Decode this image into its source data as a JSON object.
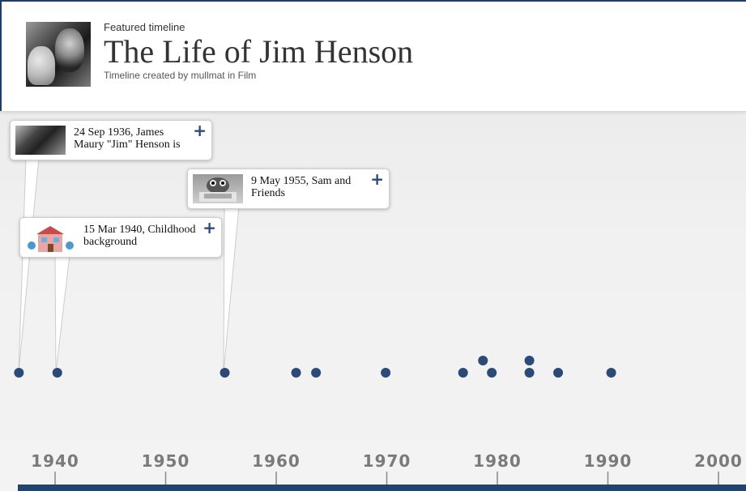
{
  "header": {
    "featured": "Featured timeline",
    "title": "The Life of Jim Henson",
    "subtitle": "Timeline created by mullmat in Film"
  },
  "events": [
    {
      "text": "24 Sep 1936, James Maury \"Jim\" Henson is",
      "year": 1936.73,
      "thumb": "henson-photo"
    },
    {
      "text": "15 Mar 1940, Childhood background",
      "year": 1940.2,
      "thumb": "cartoon-house"
    },
    {
      "text": "9 May 1955, Sam and Friends",
      "year": 1955.35,
      "thumb": "sam-and-friends-still"
    }
  ],
  "extra_events": [
    {
      "year": 1961.8,
      "row": 0
    },
    {
      "year": 1963.6,
      "row": 0
    },
    {
      "year": 1969.9,
      "row": 0
    },
    {
      "year": 1976.9,
      "row": 0
    },
    {
      "year": 1978.7,
      "row": 1
    },
    {
      "year": 1979.5,
      "row": 0
    },
    {
      "year": 1982.9,
      "row": 1
    },
    {
      "year": 1982.9,
      "row": 0
    },
    {
      "year": 1985.5,
      "row": 0
    },
    {
      "year": 1990.3,
      "row": 0
    }
  ],
  "axis": {
    "labels": [
      "1940",
      "1950",
      "1960",
      "1970",
      "1980",
      "1990",
      "2000"
    ]
  },
  "colors": {
    "accent": "#22436b",
    "dot": "#2c4a78",
    "plus": "#2c4a78"
  },
  "icons": {
    "add": "plus-icon"
  }
}
